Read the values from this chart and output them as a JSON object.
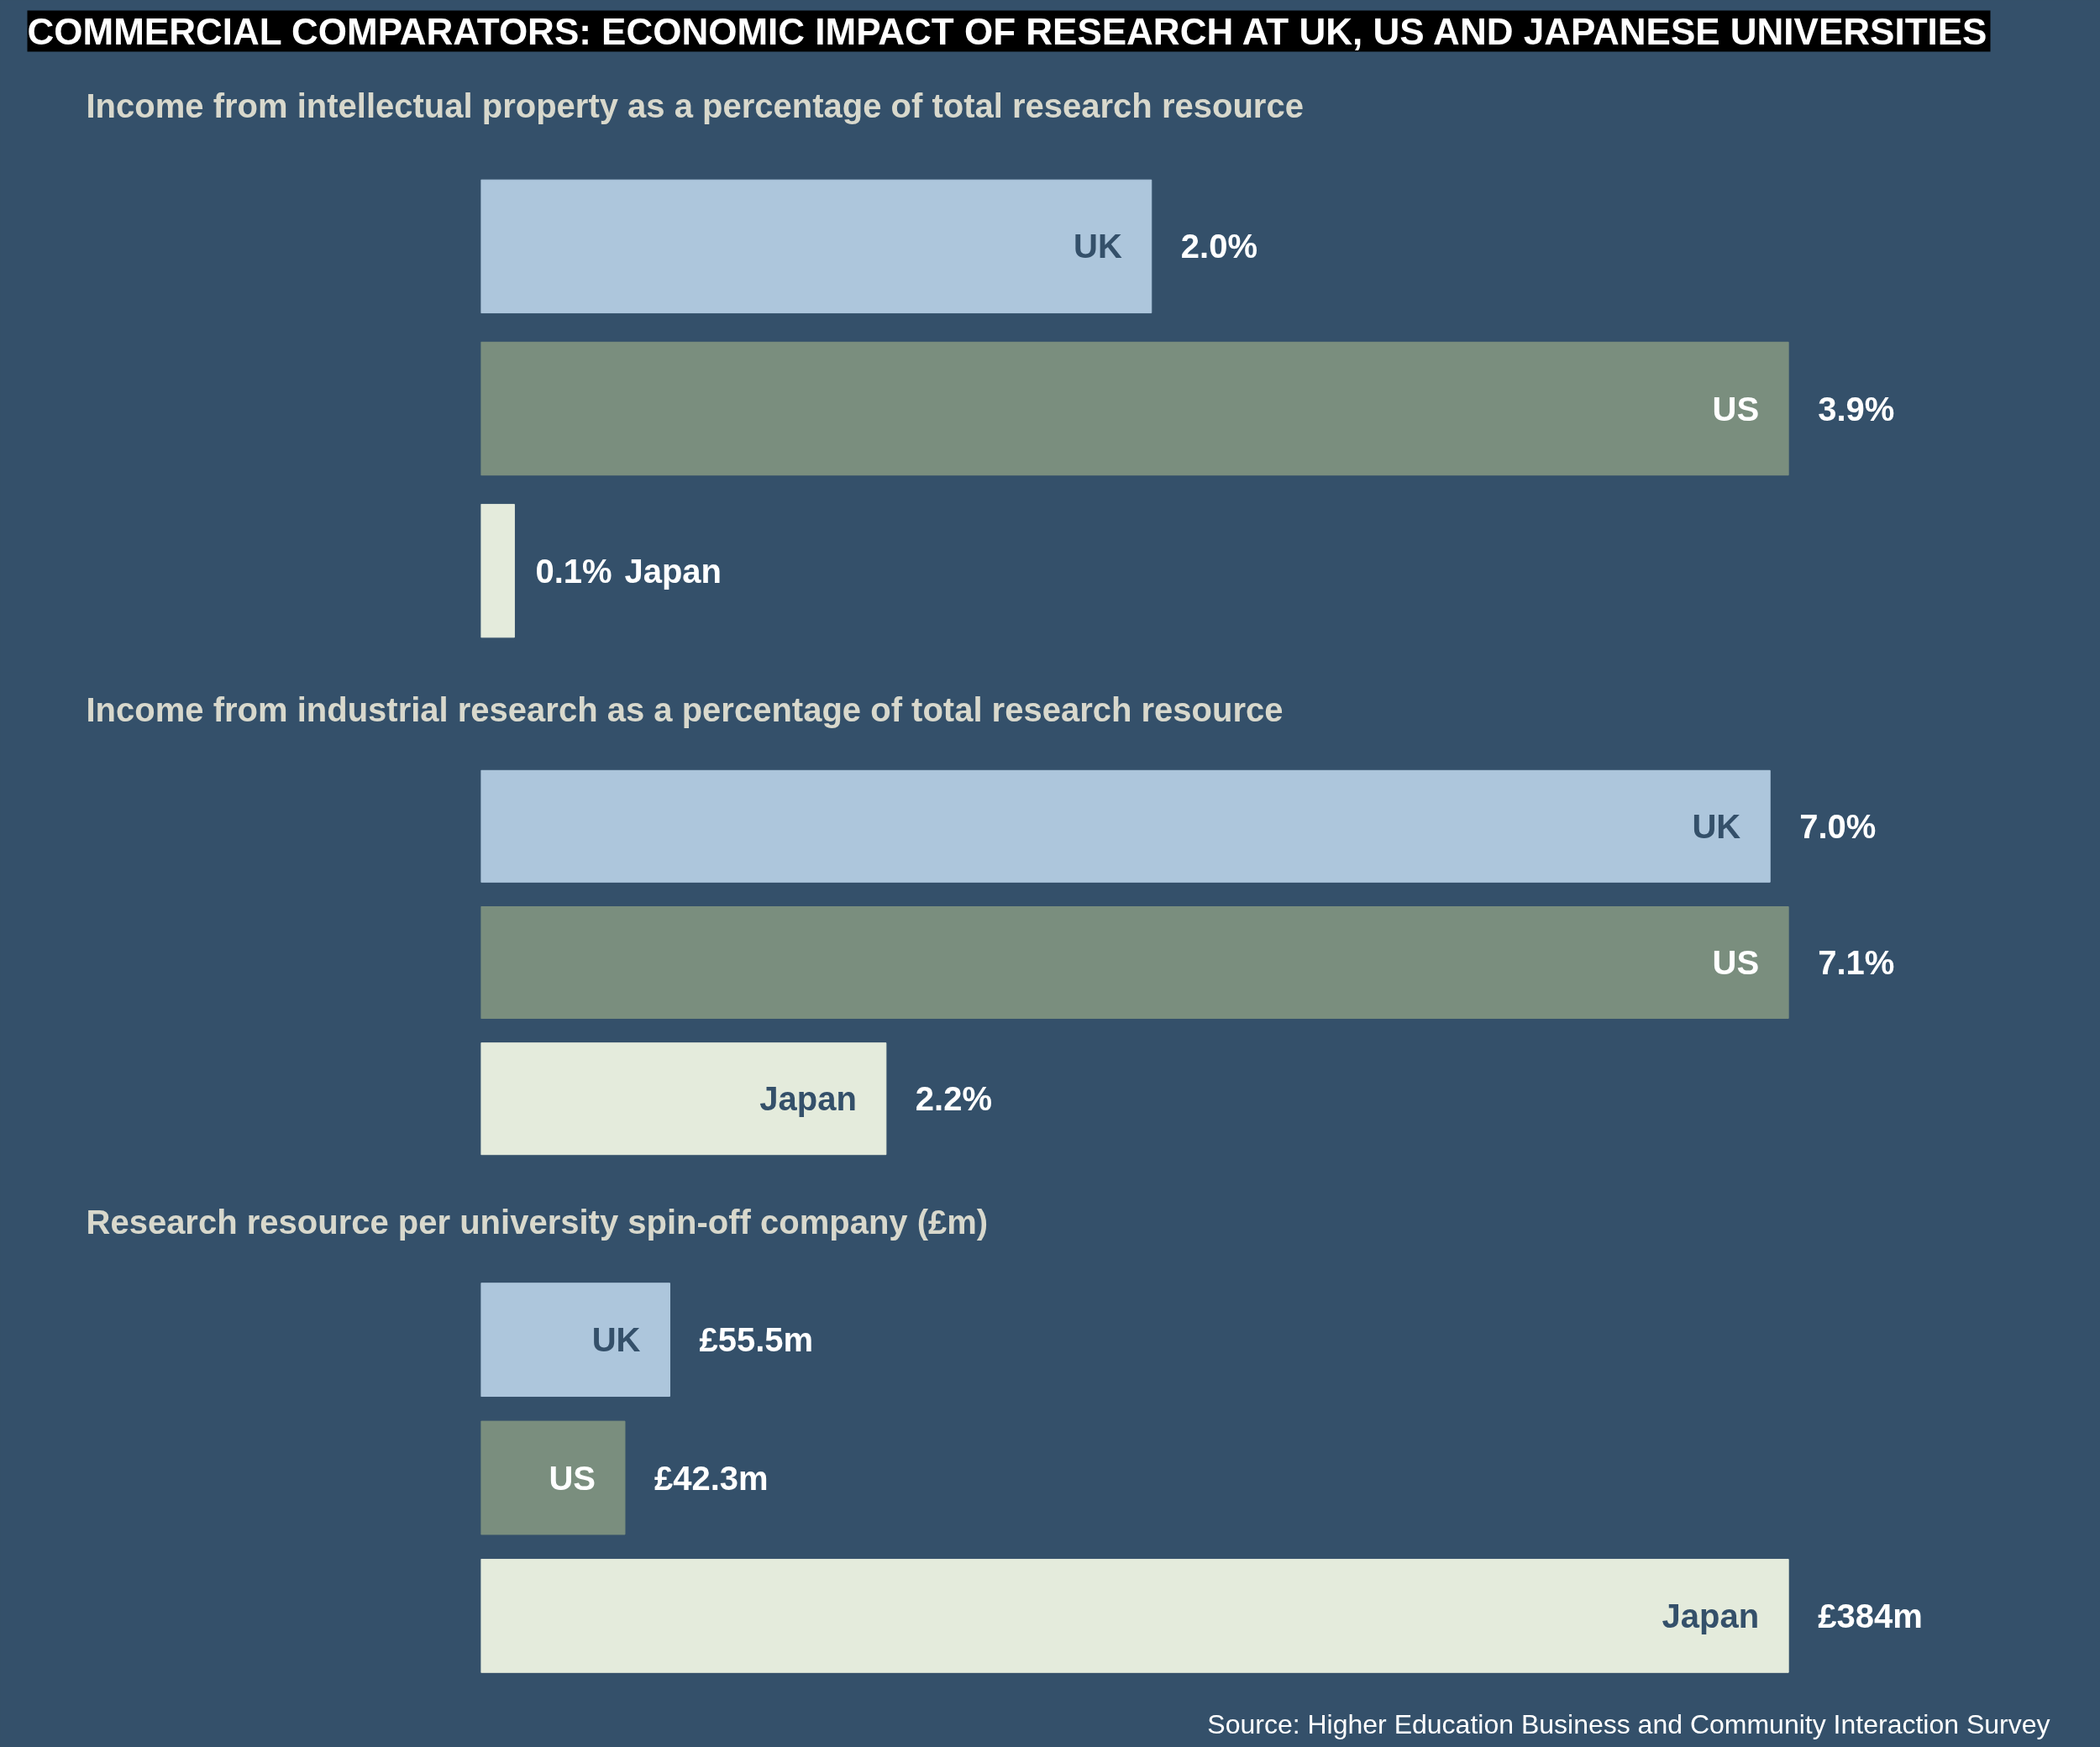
{
  "chart_data": [
    {
      "type": "bar",
      "orientation": "horizontal",
      "title": "COMMERCIAL COMPARATORS: ECONOMIC IMPACT OF RESEARCH AT UK, US AND JAPANESE UNIVERSITIES",
      "subtitle": "Income from intellectual property as a percentage of total research resource",
      "categories": [
        "UK",
        "US",
        "Japan"
      ],
      "values": [
        2.0,
        3.9,
        0.1
      ],
      "colors": [
        "#adc6dc",
        "#7a8e7e",
        "#e4ebdc"
      ],
      "value_labels": [
        "2.0%",
        "3.9%",
        "0.1%"
      ]
    },
    {
      "type": "bar",
      "orientation": "horizontal",
      "title": "Income from industrial research as a percentage of total research resource",
      "categories": [
        "UK",
        "US",
        "Japan"
      ],
      "values": [
        7.0,
        7.1,
        2.2
      ],
      "colors": [
        "#adc6dc",
        "#7a8e7e",
        "#e4ebdc"
      ],
      "value_labels": [
        "7.0%",
        "7.1%",
        "2.2%"
      ]
    },
    {
      "type": "bar",
      "orientation": "horizontal",
      "title": "Research resource per university spin-off company (£m)",
      "categories": [
        "UK",
        "US",
        "Japan"
      ],
      "values": [
        55.5,
        42.3,
        384
      ],
      "colors": [
        "#adc6dc",
        "#7a8e7e",
        "#e4ebdc"
      ],
      "value_labels": [
        "£55.5m",
        "£42.3m",
        "£384m"
      ],
      "annotations": [
        "Source: Higher Education Business and Community Interaction Survey"
      ]
    }
  ]
}
